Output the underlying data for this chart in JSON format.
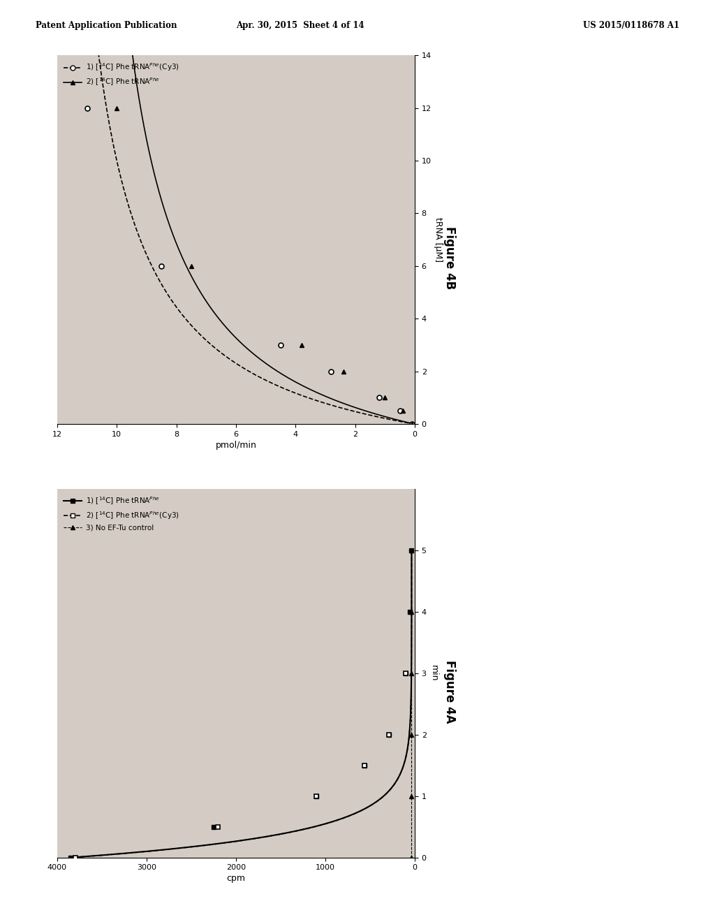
{
  "header_left": "Patent Application Publication",
  "header_center": "Apr. 30, 2015  Sheet 4 of 14",
  "header_right": "US 2015/0118678 A1",
  "page_bg": "#d8d0c8",
  "plot_bg": "#c8c0b8",
  "figA": {
    "title": "Figure 4A",
    "xlabel": "min",
    "ylabel": "cpm",
    "xlim": [
      0,
      6
    ],
    "ylim": [
      0,
      4000
    ],
    "xticks": [
      0,
      1,
      2,
      3,
      4,
      5
    ],
    "yticks": [
      0,
      1000,
      2000,
      3000,
      4000
    ],
    "decay_x": [
      0,
      0.25,
      0.5,
      0.75,
      1.0,
      1.25,
      1.5,
      1.75,
      2.0,
      2.5,
      3.0,
      3.5,
      4.0,
      4.5,
      5.0
    ],
    "decay_y": [
      3800,
      3000,
      2200,
      1600,
      1100,
      780,
      560,
      400,
      290,
      160,
      100,
      70,
      55,
      45,
      35
    ],
    "pts1_x": [
      0,
      0.5,
      1.0,
      1.5,
      2.0,
      3.0,
      4.0,
      5.0
    ],
    "pts1_y": [
      3850,
      2250,
      1100,
      560,
      290,
      100,
      55,
      35
    ],
    "pts2_x": [
      0,
      0.5,
      1.0,
      1.5,
      2.0,
      3.0
    ],
    "pts2_y": [
      3800,
      2200,
      1100,
      560,
      290,
      100
    ],
    "pts3_x": [
      0,
      1,
      2,
      3,
      4,
      5
    ],
    "pts3_y": [
      35,
      35,
      35,
      35,
      35,
      35
    ],
    "flat_y": 35
  },
  "figB": {
    "title": "Figure 4B",
    "xlabel": "tRNA [µM]",
    "ylabel": "pmol/min",
    "xlim": [
      0,
      14
    ],
    "ylim": [
      0,
      12
    ],
    "xticks": [
      0,
      2,
      4,
      6,
      8,
      10,
      12,
      14
    ],
    "yticks": [
      0,
      2,
      4,
      6,
      8,
      10,
      12
    ],
    "pts1_x": [
      0,
      0.5,
      1.0,
      2.0,
      3.0,
      6.0,
      12.0
    ],
    "pts1_y": [
      0.1,
      0.5,
      1.2,
      2.8,
      4.5,
      8.5,
      11.0
    ],
    "pts2_x": [
      0,
      0.5,
      1.0,
      2.0,
      3.0,
      6.0,
      12.0
    ],
    "pts2_y": [
      0.1,
      0.4,
      1.0,
      2.4,
      3.8,
      7.5,
      10.0
    ],
    "Vmax1": 12.5,
    "Km1": 2.5,
    "Vmax2": 11.5,
    "Km2": 3.0
  }
}
